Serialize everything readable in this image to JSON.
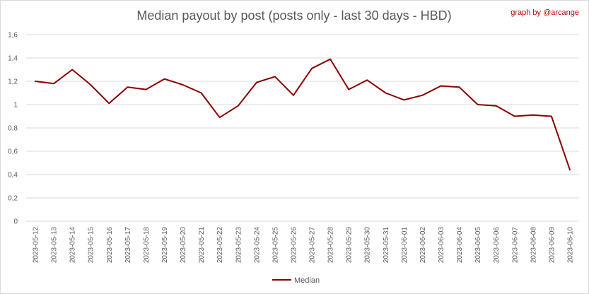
{
  "chart_data": {
    "type": "line",
    "title": "Median payout by post (posts only - last 30 days - HBD)",
    "credit": "graph by @arcange",
    "xlabel": "",
    "ylabel": "",
    "ylim": [
      0,
      1.6
    ],
    "yticks": [
      "0",
      "0,2",
      "0,4",
      "0,6",
      "0,8",
      "1",
      "1,2",
      "1,4",
      "1,6"
    ],
    "grid": true,
    "legend_position": "bottom",
    "categories": [
      "2023-05-12",
      "2023-05-13",
      "2023-05-14",
      "2023-05-15",
      "2023-05-16",
      "2023-05-17",
      "2023-05-18",
      "2023-05-19",
      "2023-05-20",
      "2023-05-21",
      "2023-05-22",
      "2023-05-23",
      "2023-05-24",
      "2023-05-25",
      "2023-05-26",
      "2023-05-27",
      "2023-05-28",
      "2023-05-29",
      "2023-05-30",
      "2023-05-31",
      "2023-06-01",
      "2023-06-02",
      "2023-06-03",
      "2023-06-04",
      "2023-06-05",
      "2023-06-06",
      "2023-06-07",
      "2023-06-08",
      "2023-06-09",
      "2023-06-10"
    ],
    "series": [
      {
        "name": "Median",
        "color": "#8b0000",
        "values": [
          1.2,
          1.18,
          1.3,
          1.17,
          1.01,
          1.15,
          1.13,
          1.22,
          1.17,
          1.1,
          0.89,
          0.99,
          1.19,
          1.24,
          1.08,
          1.31,
          1.39,
          1.13,
          1.21,
          1.1,
          1.04,
          1.08,
          1.16,
          1.15,
          1.0,
          0.99,
          0.9,
          0.91,
          0.9,
          0.44
        ]
      }
    ]
  }
}
